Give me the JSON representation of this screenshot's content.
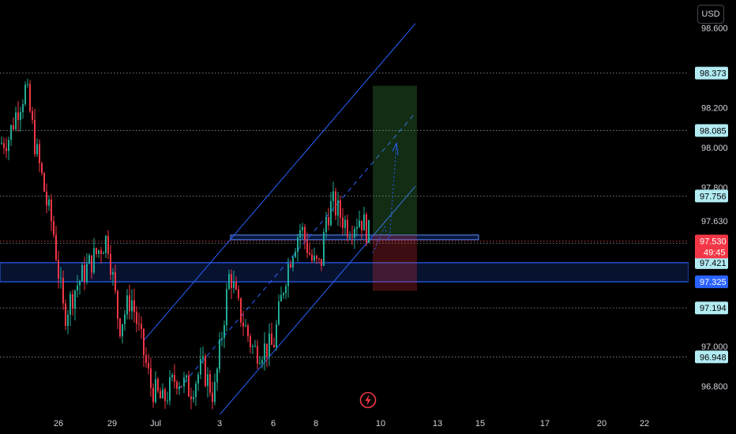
{
  "currency_button": "USD",
  "colors": {
    "background": "#000000",
    "up_candle": "#22ab94",
    "down_candle": "#f23645",
    "channel": "#2962ff",
    "zone_fill": "rgba(41,98,255,0.18)",
    "target_fill": "rgba(76,175,80,0.25)",
    "stop_fill": "rgba(242,54,69,0.25)"
  },
  "chart_data": {
    "type": "candlestick",
    "ylim": [
      96.66,
      98.74
    ],
    "y_ticks": [
      "98.600",
      "98.200",
      "98.000",
      "97.800",
      "97.630",
      "97.000",
      "96.800"
    ],
    "x_ticks": [
      "26",
      "29",
      "Jul",
      "3",
      "6",
      "8",
      "10",
      "13",
      "15",
      "17",
      "20",
      "22"
    ],
    "horizontal_levels": [
      {
        "value": 98.373,
        "label": "98.373",
        "style": "dotted"
      },
      {
        "value": 98.085,
        "label": "98.085",
        "style": "dotted"
      },
      {
        "value": 97.756,
        "label": "97.756",
        "style": "dotted"
      },
      {
        "value": 97.519,
        "label": "97.519",
        "style": "dotted"
      },
      {
        "value": 97.421,
        "label": "97.421",
        "style": "solid"
      },
      {
        "value": 97.325,
        "label": "97.325",
        "style": "solid"
      },
      {
        "value": 97.194,
        "label": "97.194",
        "style": "dotted"
      },
      {
        "value": 96.948,
        "label": "96.948",
        "style": "dotted"
      }
    ],
    "last_price": {
      "value": 97.53,
      "label": "97.530",
      "countdown": "49:45"
    },
    "support_zone": {
      "from": 97.325,
      "to": 97.421
    },
    "channel": {
      "slope_per_day": 0.118,
      "top_anchor": 98.64,
      "bottom_anchor": 96.75
    },
    "candles_summary": [
      {
        "period": "Jun 24-25",
        "open": 98.1,
        "high": 98.26,
        "low": 97.76,
        "close": 97.95
      },
      {
        "period": "Jun 26-27",
        "open": 97.62,
        "high": 97.7,
        "low": 97.0,
        "close": 97.25
      },
      {
        "period": "Jun 28-30",
        "open": 97.3,
        "high": 97.6,
        "low": 96.95,
        "close": 97.05
      },
      {
        "period": "Jul 1",
        "open": 96.95,
        "high": 97.0,
        "low": 96.7,
        "close": 96.78
      },
      {
        "period": "Jul 2-3",
        "open": 96.8,
        "high": 97.43,
        "low": 96.72,
        "close": 97.3
      },
      {
        "period": "Jul 4-6",
        "open": 97.1,
        "high": 97.2,
        "low": 96.9,
        "close": 97.0
      },
      {
        "period": "Jul 7",
        "open": 97.1,
        "high": 97.68,
        "low": 97.08,
        "close": 97.6
      },
      {
        "period": "Jul 8",
        "open": 97.45,
        "high": 97.55,
        "low": 97.2,
        "close": 97.4
      },
      {
        "period": "Jul 9",
        "open": 97.45,
        "high": 97.83,
        "low": 97.4,
        "close": 97.65
      },
      {
        "period": "Jul 10",
        "open": 97.62,
        "high": 97.75,
        "low": 97.48,
        "close": 97.53
      }
    ]
  }
}
